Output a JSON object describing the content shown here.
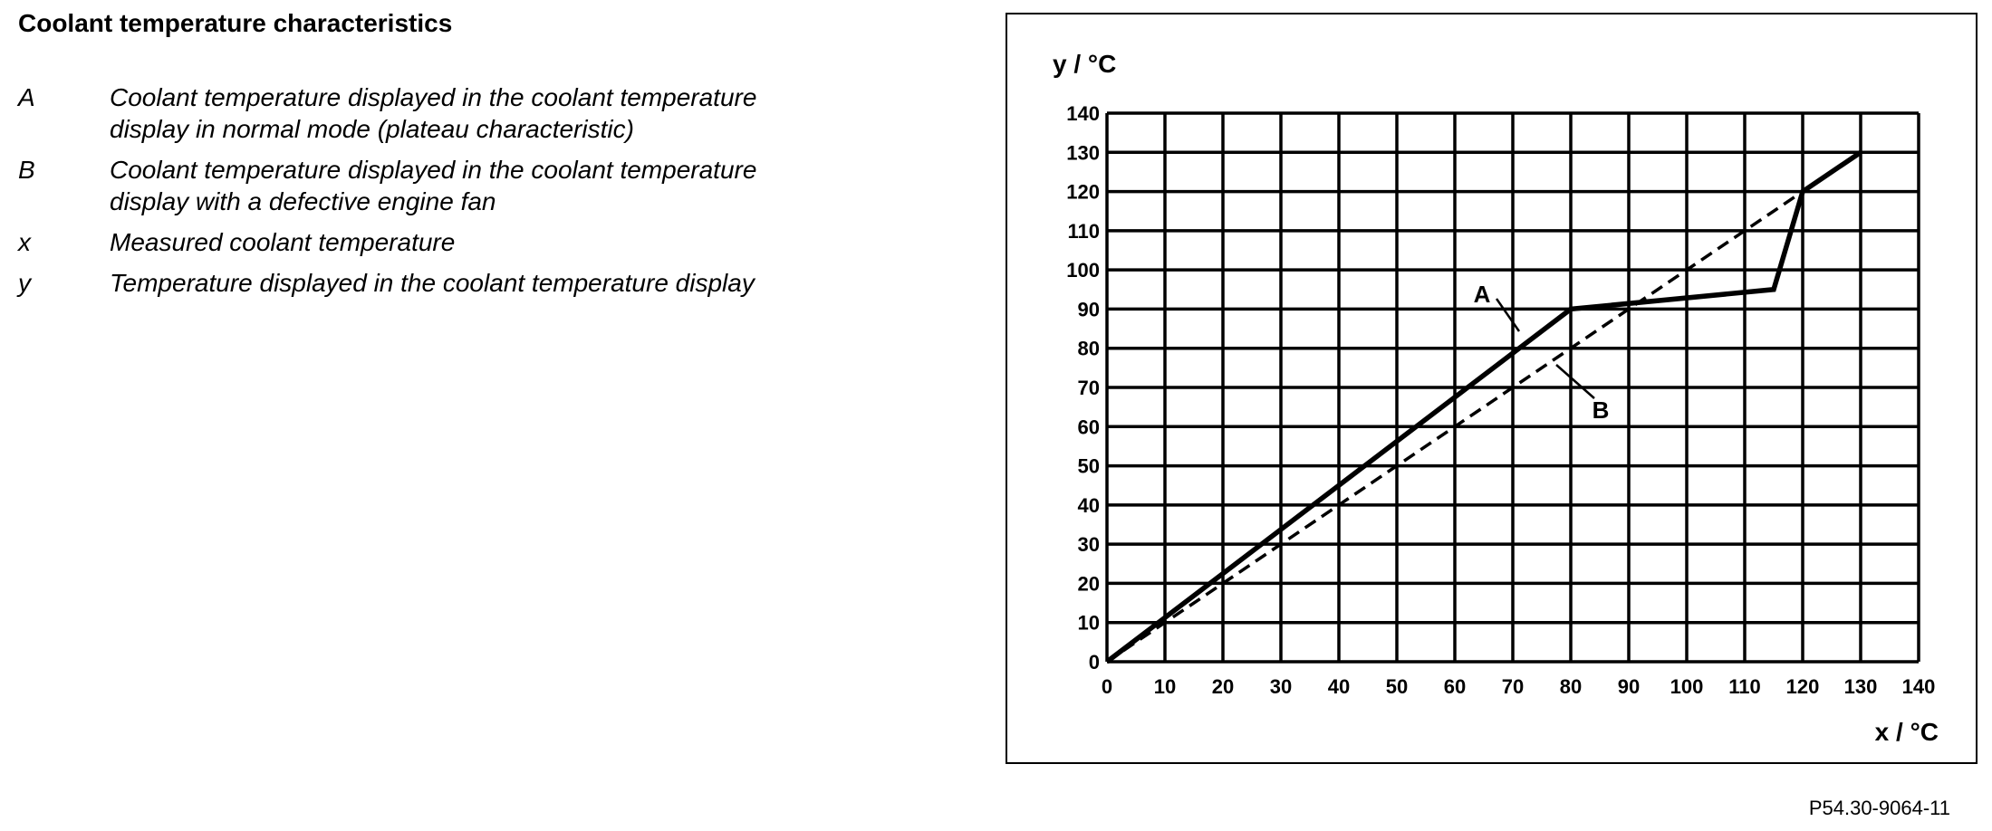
{
  "title": "Coolant temperature characteristics",
  "legend_items": [
    {
      "key": "A",
      "lines": [
        "Coolant temperature displayed in the coolant temperature",
        "display in normal mode (plateau characteristic)"
      ]
    },
    {
      "key": "B",
      "lines": [
        "Coolant temperature displayed in the coolant temperature",
        "display with a defective engine fan"
      ]
    },
    {
      "key": "x",
      "lines": [
        "Measured coolant temperature"
      ]
    },
    {
      "key": "y",
      "lines": [
        "Temperature displayed in the coolant temperature display"
      ]
    }
  ],
  "figure_id": "P54.30-9064-11",
  "chart_data": {
    "type": "line",
    "x_label": "x / °C",
    "y_label": "y / °C",
    "xlim": [
      0,
      140
    ],
    "ylim": [
      0,
      140
    ],
    "xticks": [
      0,
      10,
      20,
      30,
      40,
      50,
      60,
      70,
      80,
      90,
      100,
      110,
      120,
      130,
      140
    ],
    "yticks": [
      0,
      10,
      20,
      30,
      40,
      50,
      60,
      70,
      80,
      90,
      100,
      110,
      120,
      130,
      140
    ],
    "grid": true,
    "series": [
      {
        "name": "A",
        "color": "#000000",
        "style": "solid",
        "x": [
          0,
          80,
          115,
          120,
          130
        ],
        "values": [
          0,
          90,
          95,
          120,
          130
        ]
      },
      {
        "name": "B",
        "color": "#000000",
        "style": "dashed",
        "x": [
          0,
          120
        ],
        "values": [
          0,
          120
        ]
      }
    ]
  }
}
